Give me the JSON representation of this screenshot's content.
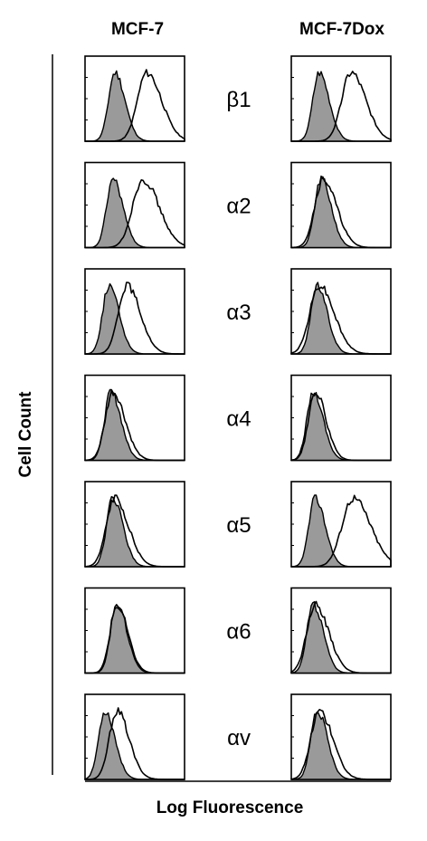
{
  "figure": {
    "columns": [
      "MCF-7",
      "MCF-7Dox"
    ],
    "y_axis_label": "Cell Count",
    "x_axis_label": "Log Fluorescence"
  },
  "chart_data": {
    "type": "histogram-grid",
    "xlabel": "Log Fluorescence",
    "ylabel": "Cell Count",
    "columns": [
      "MCF-7",
      "MCF-7Dox"
    ],
    "rows": [
      "β1",
      "α2",
      "α3",
      "α4",
      "α5",
      "α6",
      "αv"
    ],
    "series_styles": {
      "isotype": {
        "fill": "#9a9a9a",
        "stroke": "#000000"
      },
      "antibody": {
        "fill": "none",
        "stroke": "#000000"
      }
    },
    "panels": [
      {
        "row": "β1",
        "column": "MCF-7",
        "isotype_peak": 0.3,
        "antibody_peak": 0.62,
        "antibody_width": 0.11
      },
      {
        "row": "β1",
        "column": "MCF-7Dox",
        "isotype_peak": 0.28,
        "antibody_peak": 0.6,
        "antibody_width": 0.11
      },
      {
        "row": "α2",
        "column": "MCF-7",
        "isotype_peak": 0.28,
        "antibody_peak": 0.58,
        "antibody_width": 0.12
      },
      {
        "row": "α2",
        "column": "MCF-7Dox",
        "isotype_peak": 0.3,
        "antibody_peak": 0.32,
        "antibody_width": 0.1
      },
      {
        "row": "α3",
        "column": "MCF-7",
        "isotype_peak": 0.24,
        "antibody_peak": 0.42,
        "antibody_width": 0.1
      },
      {
        "row": "α3",
        "column": "MCF-7Dox",
        "isotype_peak": 0.26,
        "antibody_peak": 0.28,
        "antibody_width": 0.11
      },
      {
        "row": "α4",
        "column": "MCF-7",
        "isotype_peak": 0.26,
        "antibody_peak": 0.28,
        "antibody_width": 0.09
      },
      {
        "row": "α4",
        "column": "MCF-7Dox",
        "isotype_peak": 0.22,
        "antibody_peak": 0.24,
        "antibody_width": 0.08
      },
      {
        "row": "α5",
        "column": "MCF-7",
        "isotype_peak": 0.28,
        "antibody_peak": 0.3,
        "antibody_width": 0.1
      },
      {
        "row": "α5",
        "column": "MCF-7Dox",
        "isotype_peak": 0.24,
        "antibody_peak": 0.62,
        "antibody_width": 0.13
      },
      {
        "row": "α6",
        "column": "MCF-7",
        "isotype_peak": 0.32,
        "antibody_peak": 0.32,
        "antibody_width": 0.08
      },
      {
        "row": "α6",
        "column": "MCF-7Dox",
        "isotype_peak": 0.22,
        "antibody_peak": 0.24,
        "antibody_width": 0.1
      },
      {
        "row": "αv",
        "column": "MCF-7",
        "isotype_peak": 0.2,
        "antibody_peak": 0.32,
        "antibody_width": 0.09
      },
      {
        "row": "αv",
        "column": "MCF-7Dox",
        "isotype_peak": 0.26,
        "antibody_peak": 0.28,
        "antibody_width": 0.1
      }
    ]
  }
}
